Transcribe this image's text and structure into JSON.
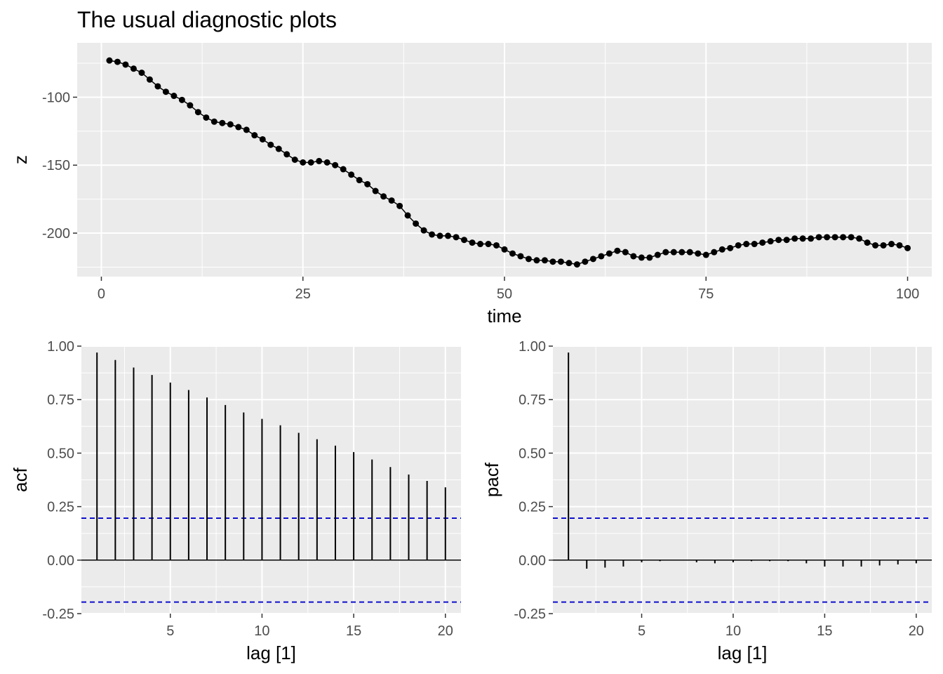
{
  "title": "The usual diagnostic plots",
  "chart_data": [
    {
      "type": "line",
      "xlabel": "time",
      "ylabel": "z",
      "xlim": [
        -3,
        103
      ],
      "ylim": [
        -232,
        -60
      ],
      "x_ticks": [
        0,
        25,
        50,
        75,
        100
      ],
      "y_ticks": [
        -200,
        -150,
        -100
      ],
      "y_minor_ticks": [
        -225,
        -175,
        -125,
        -75
      ],
      "x_minor_ticks": [
        12.5,
        37.5,
        62.5,
        87.5
      ],
      "grid": true,
      "markers": true,
      "series": [
        {
          "x": [
            1,
            2,
            3,
            4,
            5,
            6,
            7,
            8,
            9,
            10,
            11,
            12,
            13,
            14,
            15,
            16,
            17,
            18,
            19,
            20,
            21,
            22,
            23,
            24,
            25,
            26,
            27,
            28,
            29,
            30,
            31,
            32,
            33,
            34,
            35,
            36,
            37,
            38,
            39,
            40,
            41,
            42,
            43,
            44,
            45,
            46,
            47,
            48,
            49,
            50,
            51,
            52,
            53,
            54,
            55,
            56,
            57,
            58,
            59,
            60,
            61,
            62,
            63,
            64,
            65,
            66,
            67,
            68,
            69,
            70,
            71,
            72,
            73,
            74,
            75,
            76,
            77,
            78,
            79,
            80,
            81,
            82,
            83,
            84,
            85,
            86,
            87,
            88,
            89,
            90,
            91,
            92,
            93,
            94,
            95,
            96,
            97,
            98,
            99,
            100
          ],
          "values": [
            -73,
            -74,
            -76,
            -79,
            -82,
            -87,
            -92,
            -96,
            -99,
            -102,
            -106,
            -111,
            -115,
            -118,
            -119,
            -120,
            -122,
            -124,
            -128,
            -131,
            -135,
            -138,
            -142,
            -146,
            -148,
            -148,
            -147,
            -148,
            -150,
            -153,
            -157,
            -161,
            -164,
            -169,
            -173,
            -176,
            -180,
            -187,
            -193,
            -198,
            -201,
            -202,
            -202,
            -203,
            -205,
            -207,
            -208,
            -208,
            -209,
            -212,
            -215,
            -217,
            -219,
            -220,
            -220,
            -221,
            -221,
            -222,
            -223,
            -221,
            -219,
            -217,
            -215,
            -213,
            -214,
            -217,
            -218,
            -218,
            -216,
            -214,
            -214,
            -214,
            -214,
            -215,
            -216,
            -214,
            -212,
            -211,
            -209,
            -208,
            -208,
            -207,
            -206,
            -205,
            -205,
            -204,
            -204,
            -204,
            -203,
            -203,
            -203,
            -203,
            -203,
            -204,
            -207,
            -209,
            -209,
            -208,
            -209,
            -211
          ]
        }
      ]
    },
    {
      "type": "bar",
      "xlabel": "lag [1]",
      "ylabel": "acf",
      "xlim": [
        0.15,
        20.85
      ],
      "ylim": [
        -0.25,
        1.0
      ],
      "x_ticks": [
        5,
        10,
        15,
        20
      ],
      "x_minor_ticks": [
        2.5,
        7.5,
        12.5,
        17.5
      ],
      "y_ticks": [
        -0.25,
        0.0,
        0.25,
        0.5,
        0.75,
        1.0
      ],
      "y_tick_labels": [
        "-0.25",
        "0.00",
        "0.25",
        "0.50",
        "0.75",
        "1.00"
      ],
      "y_minor_ticks": [
        -0.125,
        0.125,
        0.375,
        0.625,
        0.875
      ],
      "grid": true,
      "confidence_band": 0.196,
      "band_color": "#0000cc",
      "lags": [
        1,
        2,
        3,
        4,
        5,
        6,
        7,
        8,
        9,
        10,
        11,
        12,
        13,
        14,
        15,
        16,
        17,
        18,
        19,
        20
      ],
      "values": [
        0.97,
        0.935,
        0.9,
        0.865,
        0.83,
        0.795,
        0.76,
        0.725,
        0.69,
        0.66,
        0.63,
        0.595,
        0.565,
        0.535,
        0.505,
        0.47,
        0.435,
        0.4,
        0.37,
        0.34
      ]
    },
    {
      "type": "bar",
      "xlabel": "lag [1]",
      "ylabel": "pacf",
      "xlim": [
        0.15,
        20.85
      ],
      "ylim": [
        -0.25,
        1.0
      ],
      "x_ticks": [
        5,
        10,
        15,
        20
      ],
      "x_minor_ticks": [
        2.5,
        7.5,
        12.5,
        17.5
      ],
      "y_ticks": [
        -0.25,
        0.0,
        0.25,
        0.5,
        0.75,
        1.0
      ],
      "y_tick_labels": [
        "-0.25",
        "0.00",
        "0.25",
        "0.50",
        "0.75",
        "1.00"
      ],
      "y_minor_ticks": [
        -0.125,
        0.125,
        0.375,
        0.625,
        0.875
      ],
      "grid": true,
      "confidence_band": 0.196,
      "band_color": "#0000cc",
      "lags": [
        1,
        2,
        3,
        4,
        5,
        6,
        7,
        8,
        9,
        10,
        11,
        12,
        13,
        14,
        15,
        16,
        17,
        18,
        19,
        20
      ],
      "values": [
        0.97,
        -0.04,
        -0.035,
        -0.03,
        -0.01,
        -0.005,
        0.0,
        -0.01,
        -0.015,
        -0.01,
        -0.005,
        -0.005,
        -0.005,
        -0.015,
        -0.03,
        -0.03,
        -0.03,
        -0.025,
        -0.02,
        -0.015
      ]
    }
  ]
}
